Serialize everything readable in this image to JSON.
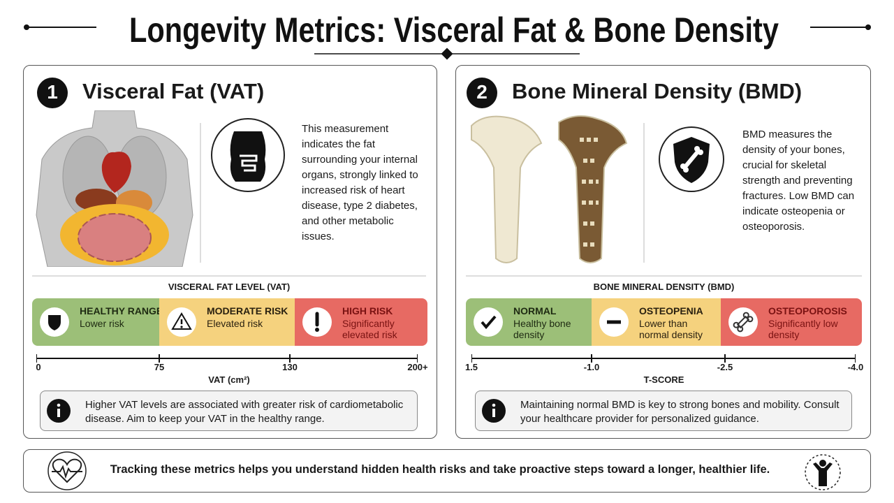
{
  "header": {
    "title": "Longevity Metrics: Visceral Fat & Bone Density"
  },
  "panels": [
    {
      "number": "1",
      "title": "Visceral Fat (VAT)",
      "description": "This measurement indicates the fat surrounding your internal organs, strongly linked to increased risk of heart disease, type 2 diabetes, and other metabolic issues.",
      "scale_title": "VISCERAL FAT LEVEL (VAT)",
      "zones": [
        {
          "label": "HEALTHY RANGE",
          "detail": "Lower risk"
        },
        {
          "label": "MODERATE RISK",
          "detail": "Elevated risk"
        },
        {
          "label": "HIGH RISK",
          "detail": "Significantly elevated risk"
        }
      ],
      "ticks": [
        "0",
        "75",
        "130",
        "200+"
      ],
      "axis_label": "VAT (cm²)",
      "note": "Higher VAT levels are associated with greater risk of cardiometabolic disease. Aim to keep your VAT in the healthy range."
    },
    {
      "number": "2",
      "title": "Bone Mineral Density (BMD)",
      "description": "BMD measures the density of your bones, crucial for skeletal strength and preventing fractures. Low BMD can indicate osteopenia or osteoporosis.",
      "scale_title": "BONE MINERAL DENSITY (BMD)",
      "zones": [
        {
          "label": "NORMAL",
          "detail": "Healthy bone density"
        },
        {
          "label": "OSTEOPENIA",
          "detail": "Lower than normal density"
        },
        {
          "label": "OSTEOPOROSIS",
          "detail": "Significantly low density"
        }
      ],
      "ticks": [
        "1.5",
        "-1.0",
        "-2.5",
        "-4.0"
      ],
      "axis_label": "T-SCORE",
      "note": "Maintaining normal BMD is key to strong bones and mobility. Consult your healthcare provider for personalized guidance."
    }
  ],
  "footer": {
    "text": "Tracking these metrics helps you understand hidden health risks and take proactive steps toward a longer, healthier life."
  }
}
